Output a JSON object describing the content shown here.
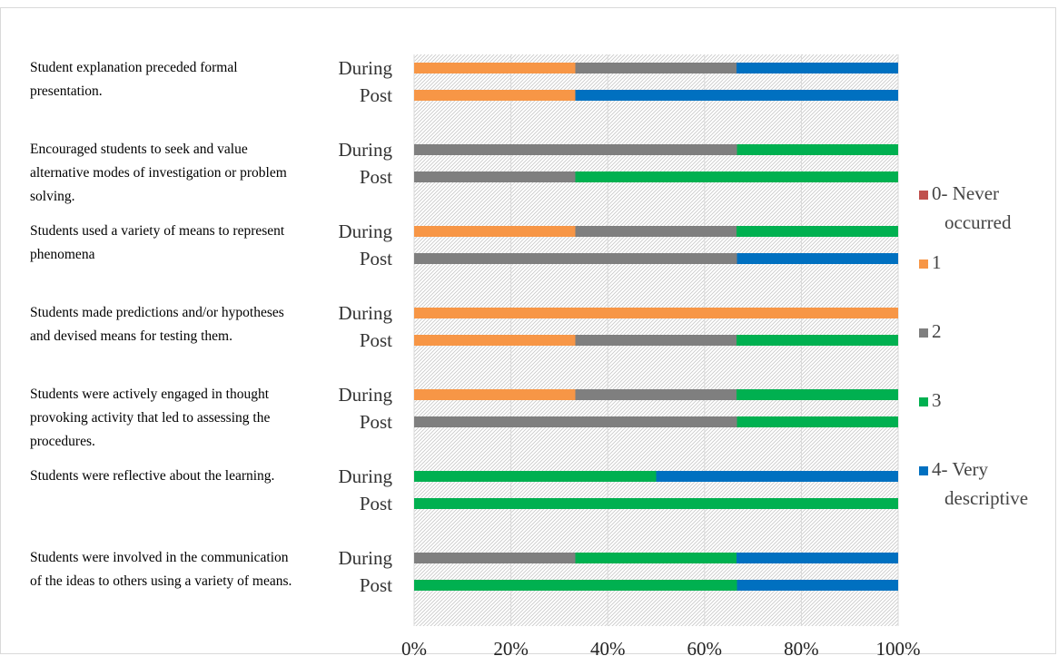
{
  "chart_data": {
    "type": "bar",
    "orientation": "horizontal",
    "stacked": "100%",
    "groups": [
      {
        "description": "Student explanation preceded formal presentation.",
        "rows": [
          {
            "label": "During",
            "values": [
              0,
              33.3,
              33.3,
              0,
              33.4
            ]
          },
          {
            "label": "Post",
            "values": [
              0,
              33.3,
              0,
              0,
              66.7
            ]
          }
        ]
      },
      {
        "description": "Encouraged students to seek and value alternative modes of investigation or problem solving.",
        "rows": [
          {
            "label": "During",
            "values": [
              0,
              0,
              66.7,
              33.3,
              0
            ]
          },
          {
            "label": "Post",
            "values": [
              0,
              0,
              33.3,
              66.7,
              0
            ]
          }
        ]
      },
      {
        "description": "Students used a variety of means to represent phenomena",
        "rows": [
          {
            "label": "During",
            "values": [
              0,
              33.3,
              33.3,
              33.4,
              0
            ]
          },
          {
            "label": "Post",
            "values": [
              0,
              0,
              66.7,
              0,
              33.3
            ]
          }
        ]
      },
      {
        "description": "Students made predictions and/or hypotheses and devised means for testing them.",
        "rows": [
          {
            "label": "During",
            "values": [
              0,
              100,
              0,
              0,
              0
            ]
          },
          {
            "label": "Post",
            "values": [
              0,
              33.3,
              33.3,
              33.4,
              0
            ]
          }
        ]
      },
      {
        "description": "Students were actively engaged in thought provoking activity that led to assessing the procedures.",
        "rows": [
          {
            "label": "During",
            "values": [
              0,
              33.3,
              33.3,
              33.4,
              0
            ]
          },
          {
            "label": "Post",
            "values": [
              0,
              0,
              66.7,
              33.3,
              0
            ]
          }
        ]
      },
      {
        "description": "Students were reflective about the learning.",
        "rows": [
          {
            "label": "During",
            "values": [
              0,
              0,
              0,
              50,
              50
            ]
          },
          {
            "label": "Post",
            "values": [
              0,
              0,
              0,
              100,
              0
            ]
          }
        ]
      },
      {
        "description": "Students were involved in the communication of the ideas to others using a variety of means.",
        "rows": [
          {
            "label": "During",
            "values": [
              0,
              0,
              33.3,
              33.3,
              33.4
            ]
          },
          {
            "label": "Post",
            "values": [
              0,
              0,
              0,
              66.7,
              33.3
            ]
          }
        ]
      }
    ],
    "series": [
      {
        "name": "0- Never occurred",
        "color": "#c0504d"
      },
      {
        "name": "1",
        "color": "#f79646"
      },
      {
        "name": "2",
        "color": "#7f7f7f"
      },
      {
        "name": "3",
        "color": "#00b050"
      },
      {
        "name": "4- Very descriptive",
        "color": "#0070c0"
      }
    ],
    "x_ticks": [
      "0%",
      "20%",
      "40%",
      "60%",
      "80%",
      "100%"
    ],
    "xlim": [
      0,
      100
    ],
    "grid": true,
    "legend_position": "right"
  }
}
